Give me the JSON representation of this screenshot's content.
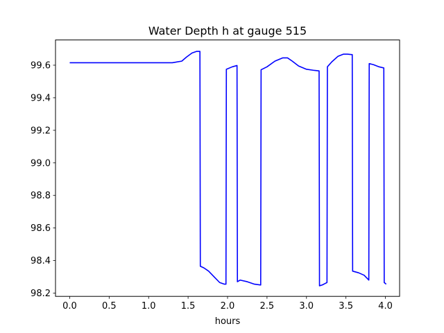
{
  "chart_data": {
    "type": "line",
    "title": "Water Depth h at gauge 515",
    "xlabel": "hours",
    "ylabel": "",
    "xlim": [
      -0.18,
      4.18
    ],
    "ylim": [
      98.18,
      99.755
    ],
    "xticks": [
      0.0,
      0.5,
      1.0,
      1.5,
      2.0,
      2.5,
      3.0,
      3.5,
      4.0
    ],
    "xtick_labels": [
      "0.0",
      "0.5",
      "1.0",
      "1.5",
      "2.0",
      "2.5",
      "3.0",
      "3.5",
      "4.0"
    ],
    "yticks": [
      98.2,
      98.4,
      98.6,
      98.8,
      99.0,
      99.2,
      99.4,
      99.6
    ],
    "ytick_labels": [
      "98.2",
      "98.4",
      "98.6",
      "98.8",
      "99.0",
      "99.2",
      "99.4",
      "99.6"
    ],
    "grid": false,
    "line_color": "#0000ff",
    "series": [
      {
        "x": [
          0.0,
          0.5,
          1.0,
          1.3,
          1.42,
          1.48,
          1.55,
          1.61,
          1.65,
          1.655,
          1.7,
          1.76,
          1.83,
          1.9,
          1.96,
          1.98,
          1.985,
          2.06,
          2.12,
          2.125,
          2.16,
          2.25,
          2.34,
          2.42,
          2.425,
          2.5,
          2.6,
          2.7,
          2.76,
          2.82,
          2.9,
          3.0,
          3.1,
          3.16,
          3.165,
          3.2,
          3.24,
          3.26,
          3.265,
          3.32,
          3.4,
          3.47,
          3.52,
          3.57,
          3.58,
          3.585,
          3.66,
          3.73,
          3.79,
          3.795,
          3.85,
          3.92,
          3.98,
          3.985,
          4.01
        ],
        "y": [
          99.615,
          99.615,
          99.615,
          99.615,
          99.625,
          99.65,
          99.675,
          99.685,
          99.685,
          98.365,
          98.355,
          98.335,
          98.3,
          98.265,
          98.255,
          98.255,
          99.575,
          99.59,
          99.598,
          98.27,
          98.28,
          98.27,
          98.255,
          98.25,
          99.572,
          99.59,
          99.625,
          99.645,
          99.645,
          99.625,
          99.595,
          99.575,
          99.568,
          99.565,
          98.245,
          98.25,
          98.26,
          98.265,
          99.59,
          99.62,
          99.655,
          99.668,
          99.668,
          99.665,
          99.665,
          98.335,
          98.325,
          98.31,
          98.28,
          99.61,
          99.603,
          99.59,
          99.583,
          98.265,
          98.255
        ]
      }
    ]
  }
}
